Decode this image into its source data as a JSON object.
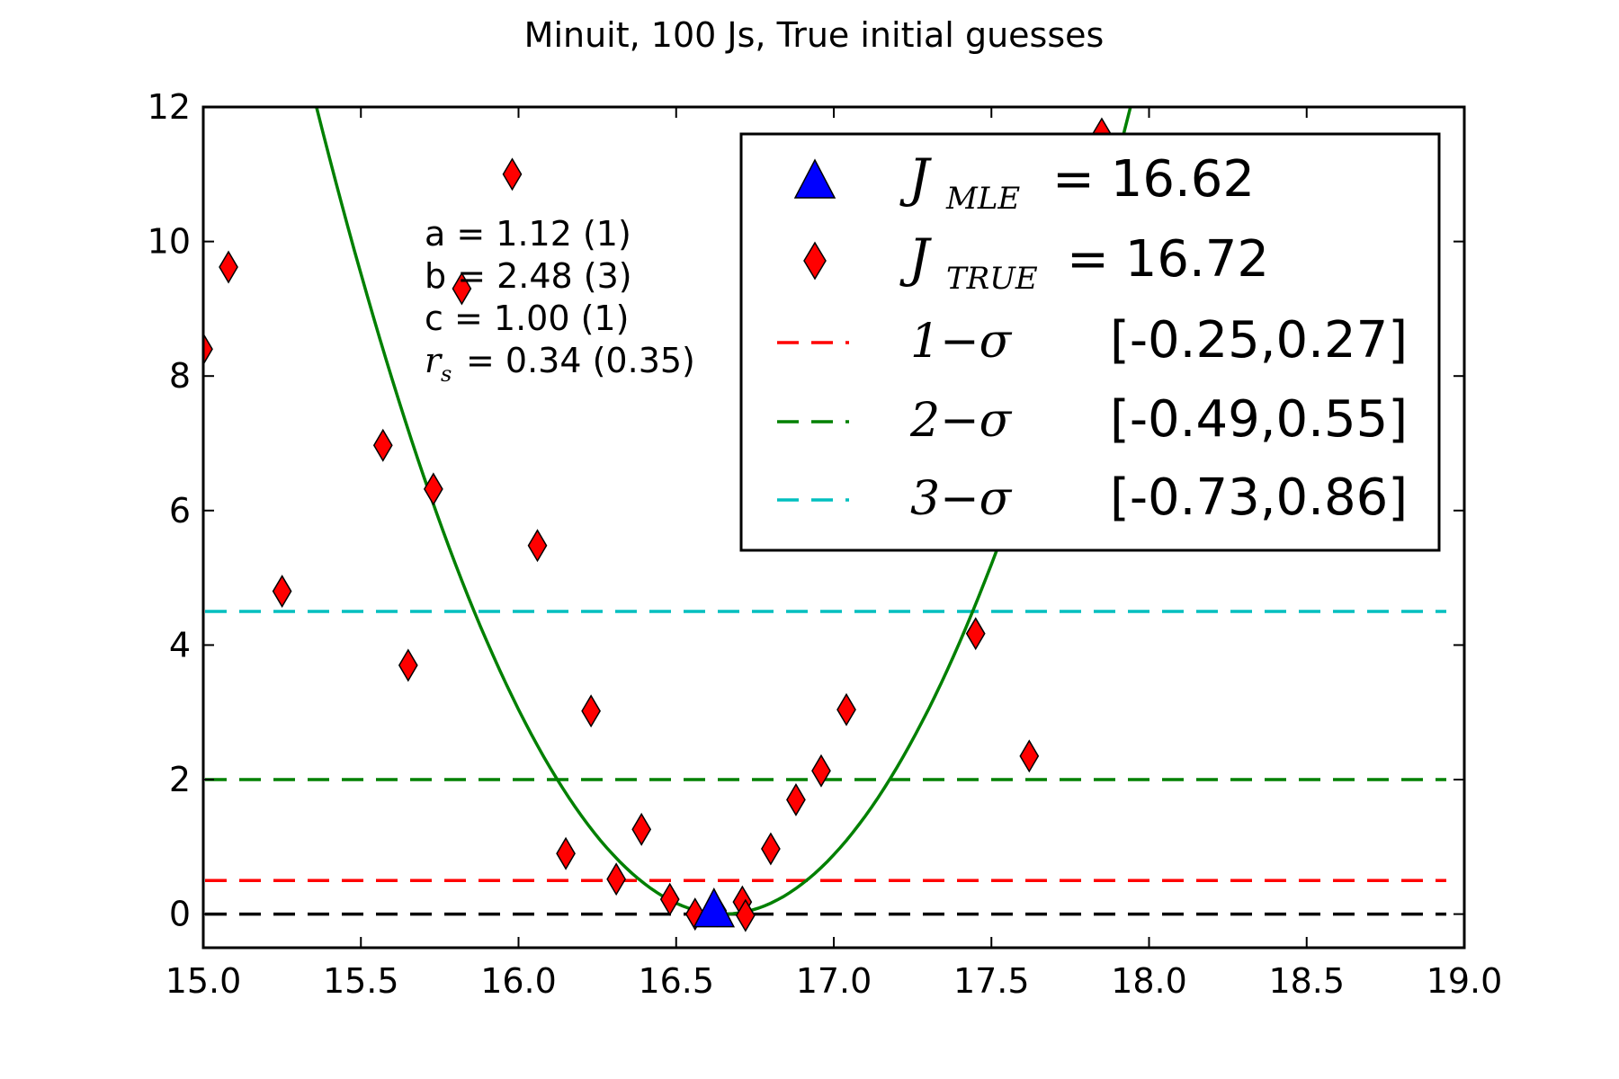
{
  "chart_data": {
    "type": "scatter",
    "title": "Minuit, 100 Js, True initial guesses",
    "xlabel": "",
    "ylabel": "",
    "xlim": [
      15.0,
      19.0
    ],
    "ylim": [
      -0.5,
      12.0
    ],
    "xticks": [
      "15.0",
      "15.5",
      "16.0",
      "16.5",
      "17.0",
      "17.5",
      "18.0",
      "18.5",
      "19.0"
    ],
    "yticks": [
      "0",
      "2",
      "4",
      "6",
      "8",
      "10",
      "12"
    ],
    "grid": false,
    "legend_position": "top-right",
    "annotations": [
      "a = 1.12 (1)",
      "b = 2.48 (3)",
      "c = 1.00 (1)",
      "= 0.34 (0.35)"
    ],
    "annotation_symbol": "r",
    "annotation_symbol_sub": "s",
    "fit_curve": {
      "color": "#008000",
      "vertex_x": 16.65,
      "vertex_y": 0.0,
      "curvature": 7.2
    },
    "series": [
      {
        "name": "J_TRUE = 16.72",
        "marker": "diamond",
        "color": "#ff0000",
        "points": [
          [
            15.0,
            8.4
          ],
          [
            15.08,
            9.62
          ],
          [
            15.25,
            4.8
          ],
          [
            15.57,
            6.97
          ],
          [
            15.65,
            3.7
          ],
          [
            15.73,
            6.32
          ],
          [
            15.82,
            9.3
          ],
          [
            15.98,
            11.0
          ],
          [
            16.06,
            5.48
          ],
          [
            16.15,
            0.9
          ],
          [
            16.23,
            3.02
          ],
          [
            16.31,
            0.52
          ],
          [
            16.39,
            1.26
          ],
          [
            16.48,
            0.22
          ],
          [
            16.56,
            0.0
          ],
          [
            16.63,
            0.05
          ],
          [
            16.71,
            0.18
          ],
          [
            16.72,
            -0.02
          ],
          [
            16.8,
            0.97
          ],
          [
            16.88,
            1.7
          ],
          [
            16.96,
            2.13
          ],
          [
            17.04,
            3.04
          ],
          [
            17.45,
            4.17
          ],
          [
            17.62,
            2.35
          ],
          [
            17.85,
            11.6
          ]
        ]
      },
      {
        "name": "J_MLE = 16.62",
        "marker": "triangle",
        "color": "#0000ff",
        "points": [
          [
            16.62,
            0.0
          ]
        ]
      }
    ],
    "hlines": [
      {
        "name": "zero",
        "y": 0.0,
        "color": "#000000"
      },
      {
        "name": "1-sigma",
        "y": 0.5,
        "color": "#ff0000"
      },
      {
        "name": "2-sigma",
        "y": 2.0,
        "color": "#008000"
      },
      {
        "name": "3-sigma",
        "y": 4.5,
        "color": "#00bfbf"
      }
    ],
    "legend": {
      "mle": {
        "symbol": "J",
        "sub": "MLE",
        "value": "= 16.62"
      },
      "true": {
        "symbol": "J",
        "sub": "TRUE",
        "value": "= 16.72"
      },
      "sigma1": {
        "label": "1−σ",
        "range": "[-0.25,0.27]"
      },
      "sigma2": {
        "label": "2−σ",
        "range": "[-0.49,0.55]"
      },
      "sigma3": {
        "label": "3−σ",
        "range": "[-0.73,0.86]"
      }
    }
  }
}
